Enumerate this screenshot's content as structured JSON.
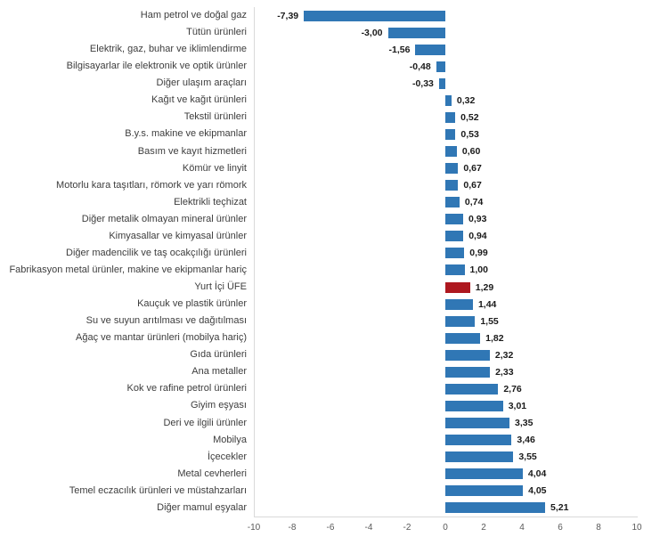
{
  "chart_data": {
    "type": "bar",
    "orientation": "horizontal",
    "title": "",
    "xlabel": "",
    "ylabel": "",
    "xlim": [
      -10,
      10
    ],
    "x_ticks": [
      -10,
      -8,
      -6,
      -4,
      -2,
      0,
      2,
      4,
      6,
      8,
      10
    ],
    "x_tick_labels": [
      "-10",
      "-8",
      "-6",
      "-4",
      "-2",
      "0",
      "2",
      "4",
      "6",
      "8",
      "10"
    ],
    "grid": false,
    "legend_position": "none",
    "decimal_separator": ",",
    "highlight_category": "Yurt İçi ÜFE",
    "highlight_index": 16,
    "colors": {
      "bar": "#3077B5",
      "highlight_bar": "#AE181F",
      "axis_line": "#D9D9D9",
      "category_text": "#3D3D3D",
      "value_text": "#1A1A1A",
      "tick_text": "#595959",
      "background": "#FFFFFF"
    },
    "categories": [
      "Ham petrol ve doğal gaz",
      "Tütün ürünleri",
      "Elektrik, gaz, buhar ve iklimlendirme",
      "Bilgisayarlar ile elektronik ve optik ürünler",
      "Diğer ulaşım araçları",
      "Kağıt ve kağıt ürünleri",
      "Tekstil ürünleri",
      "B.y.s. makine ve ekipmanlar",
      "Basım ve kayıt hizmetleri",
      "Kömür ve linyit",
      "Motorlu kara taşıtları, römork ve yarı römork",
      "Elektrikli teçhizat",
      "Diğer metalik olmayan mineral ürünler",
      "Kimyasallar ve kimyasal ürünler",
      "Diğer madencilik ve taş ocakçılığı ürünleri",
      "Fabrikasyon metal ürünler, makine ve ekipmanlar hariç",
      "Yurt İçi ÜFE",
      "Kauçuk ve plastik ürünler",
      "Su ve suyun arıtılması ve dağıtılması",
      "Ağaç ve mantar ürünleri (mobilya hariç)",
      "Gıda ürünleri",
      "Ana metaller",
      "Kok ve rafine petrol ürünleri",
      "Giyim eşyası",
      "Deri ve ilgili ürünler",
      "Mobilya",
      "İçecekler",
      "Metal cevherleri",
      "Temel eczacılık ürünleri ve müstahzarları",
      "Diğer mamul eşyalar"
    ],
    "values": [
      -7.39,
      -3.0,
      -1.56,
      -0.48,
      -0.33,
      0.32,
      0.52,
      0.53,
      0.6,
      0.67,
      0.67,
      0.74,
      0.93,
      0.94,
      0.99,
      1.0,
      1.29,
      1.44,
      1.55,
      1.82,
      2.32,
      2.33,
      2.76,
      3.01,
      3.35,
      3.46,
      3.55,
      4.04,
      4.05,
      5.21
    ],
    "value_labels": [
      "-7,39",
      "-3,00",
      "-1,56",
      "-0,48",
      "-0,33",
      "0,32",
      "0,52",
      "0,53",
      "0,60",
      "0,67",
      "0,67",
      "0,74",
      "0,93",
      "0,94",
      "0,99",
      "1,00",
      "1,29",
      "1,44",
      "1,55",
      "1,82",
      "2,32",
      "2,33",
      "2,76",
      "3,01",
      "3,35",
      "3,46",
      "3,55",
      "4,04",
      "4,05",
      "5,21"
    ]
  }
}
